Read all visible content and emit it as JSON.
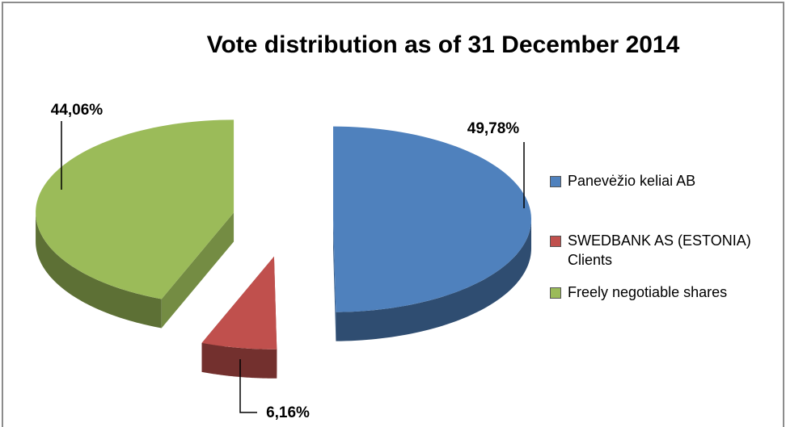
{
  "chart_data": {
    "type": "pie3d",
    "title": "Vote distribution as of 31 December 2014",
    "categories": [
      "Panevėžio keliai AB",
      "SWEDBANK AS (ESTONIA) Clients",
      "Freely negotiable shares"
    ],
    "values": [
      49.78,
      6.16,
      44.06
    ],
    "value_labels": [
      "49,78%",
      "6,16%",
      "44,06%"
    ],
    "colors": [
      "#4f81bd",
      "#c0504d",
      "#9bbb59"
    ],
    "legend": "right"
  }
}
